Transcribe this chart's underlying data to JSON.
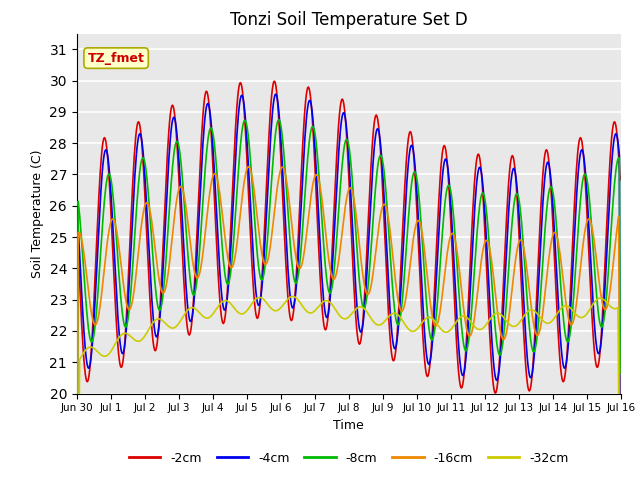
{
  "title": "Tonzi Soil Temperature Set D",
  "xlabel": "Time",
  "ylabel": "Soil Temperature (C)",
  "ylim": [
    20.0,
    31.5
  ],
  "yticks": [
    20.0,
    21.0,
    22.0,
    23.0,
    24.0,
    25.0,
    26.0,
    27.0,
    28.0,
    29.0,
    30.0,
    31.0
  ],
  "colors": {
    "-2cm": "#dd0000",
    "-4cm": "#0000ee",
    "-8cm": "#00bb00",
    "-16cm": "#ee8800",
    "-32cm": "#cccc00"
  },
  "legend_labels": [
    "-2cm",
    "-4cm",
    "-8cm",
    "-16cm",
    "-32cm"
  ],
  "annotation_text": "TZ_fmet",
  "annotation_color": "#cc0000",
  "annotation_bg": "#ffffcc",
  "background_color": "#e8e8e8",
  "grid_color": "#ffffff",
  "n_days": 16,
  "samples_per_day": 48
}
